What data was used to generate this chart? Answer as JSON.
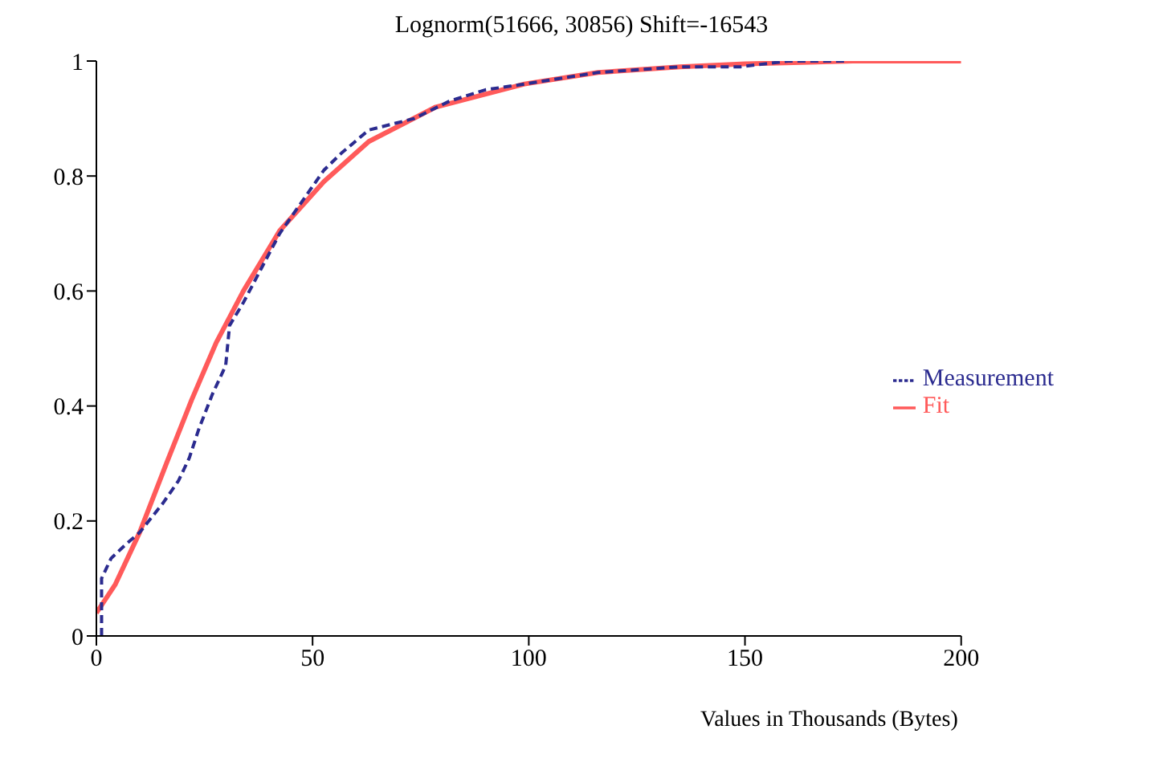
{
  "chart_data": {
    "type": "line",
    "title": "Lognorm(51666, 30856) Shift=-16543",
    "xlabel": "Values in Thousands (Bytes)",
    "xlim": [
      0,
      200
    ],
    "xticks": [
      0,
      50,
      100,
      150,
      200
    ],
    "ylim": [
      0,
      1
    ],
    "yticks": [
      0,
      0.2,
      0.4,
      0.6,
      0.8,
      1
    ],
    "grid": false,
    "legend": "right",
    "marker": "none",
    "series": [
      {
        "name": "Measurement",
        "color": "#2b2b8f",
        "line_style": "dashed",
        "x": [
          1.2,
          1.2,
          3.4,
          6.9,
          10,
          15.3,
          19,
          21.5,
          23.7,
          26.8,
          29.9,
          30.8,
          34,
          42.4,
          52.6,
          56.7,
          63,
          73.5,
          81.6,
          90,
          99,
          116,
          135,
          149,
          160,
          173
        ],
        "values": [
          0,
          0.1,
          0.135,
          0.16,
          0.18,
          0.23,
          0.27,
          0.31,
          0.36,
          0.42,
          0.47,
          0.54,
          0.58,
          0.7,
          0.81,
          0.84,
          0.88,
          0.9,
          0.93,
          0.95,
          0.96,
          0.98,
          0.99,
          0.99,
          1,
          1
        ]
      },
      {
        "name": "Fit",
        "color": "#ff5a5a",
        "line_style": "solid",
        "x": [
          0,
          4.4,
          10,
          16.2,
          22,
          27.7,
          34,
          42.4,
          52.6,
          63,
          78.5,
          99,
          116,
          135,
          150,
          175,
          200
        ],
        "values": [
          0.04,
          0.09,
          0.18,
          0.3,
          0.41,
          0.51,
          0.6,
          0.705,
          0.79,
          0.86,
          0.92,
          0.96,
          0.98,
          0.99,
          0.995,
          1,
          1
        ]
      }
    ]
  }
}
